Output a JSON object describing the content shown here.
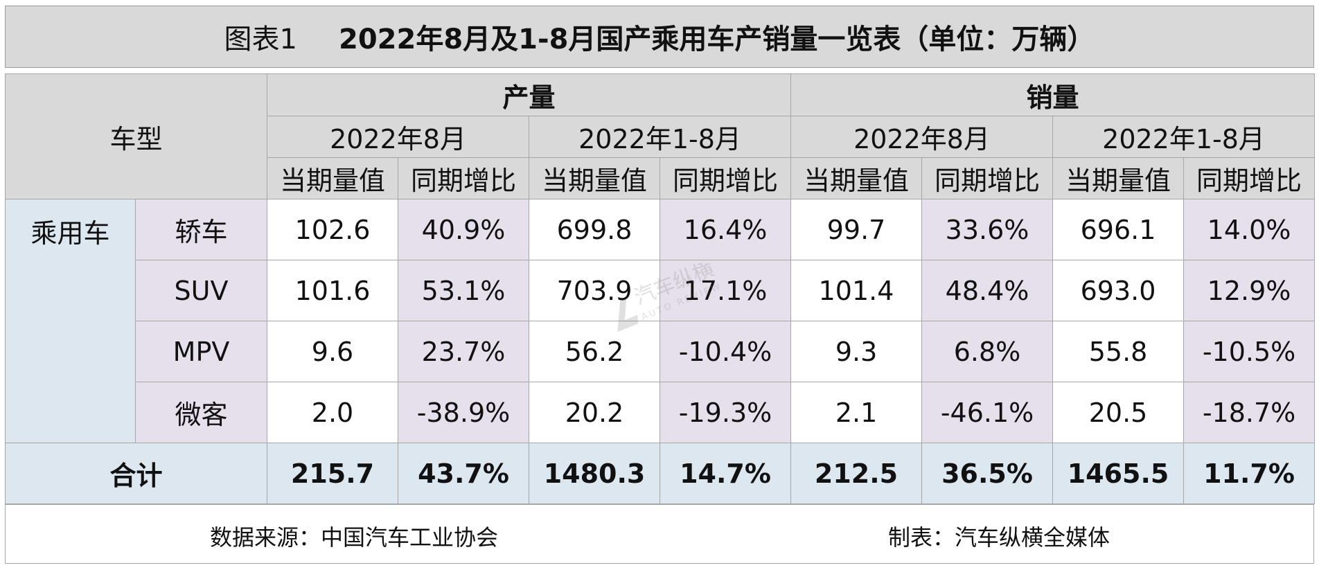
{
  "title": {
    "prefix": "图表1",
    "main": "2022年8月及1-8月国产乘用车产销量一览表（单位：万辆）"
  },
  "header": {
    "vehicle_type": "车型",
    "production": "产量",
    "sales": "销量",
    "periods": [
      "2022年8月",
      "2022年1-8月",
      "2022年8月",
      "2022年1-8月"
    ],
    "metrics": [
      "当期量值",
      "同期增比",
      "当期量值",
      "同期增比",
      "当期量值",
      "同期增比",
      "当期量值",
      "同期增比"
    ]
  },
  "category": "乘用车",
  "rows": [
    {
      "label": "轿车",
      "cells": [
        "102.6",
        "40.9%",
        "699.8",
        "16.4%",
        "99.7",
        "33.6%",
        "696.1",
        "14.0%"
      ]
    },
    {
      "label": "SUV",
      "cells": [
        "101.6",
        "53.1%",
        "703.9",
        "17.1%",
        "101.4",
        "48.4%",
        "693.0",
        "12.9%"
      ]
    },
    {
      "label": "MPV",
      "cells": [
        "9.6",
        "23.7%",
        "56.2",
        "-10.4%",
        "9.3",
        "6.8%",
        "55.8",
        "-10.5%"
      ]
    },
    {
      "label": "微客",
      "cells": [
        "2.0",
        "-38.9%",
        "20.2",
        "-19.3%",
        "2.1",
        "-46.1%",
        "20.5",
        "-18.7%"
      ]
    }
  ],
  "total": {
    "label": "合计",
    "cells": [
      "215.7",
      "43.7%",
      "1480.3",
      "14.7%",
      "212.5",
      "36.5%",
      "1465.5",
      "11.7%"
    ]
  },
  "footer": {
    "source": "数据来源：中国汽车工业协会",
    "maker": "制表：汽车纵横全媒体"
  },
  "watermark": {
    "text": "汽车纵横",
    "sub": "AUTO REVIEW"
  },
  "colors": {
    "header_bg": "#d9d9d9",
    "category_bg": "#dde7f0",
    "growth_bg": "#e6e0ec",
    "value_bg": "#ffffff"
  },
  "chart_data": {
    "type": "table",
    "title": "2022年8月及1-8月国产乘用车产销量一览表（单位：万辆）",
    "columns": [
      "产量 2022年8月 当期量值",
      "产量 2022年8月 同期增比",
      "产量 2022年1-8月 当期量值",
      "产量 2022年1-8月 同期增比",
      "销量 2022年8月 当期量值",
      "销量 2022年8月 同期增比",
      "销量 2022年1-8月 当期量值",
      "销量 2022年1-8月 同期增比"
    ],
    "rows": [
      "轿车",
      "SUV",
      "MPV",
      "微客",
      "合计"
    ]
  }
}
